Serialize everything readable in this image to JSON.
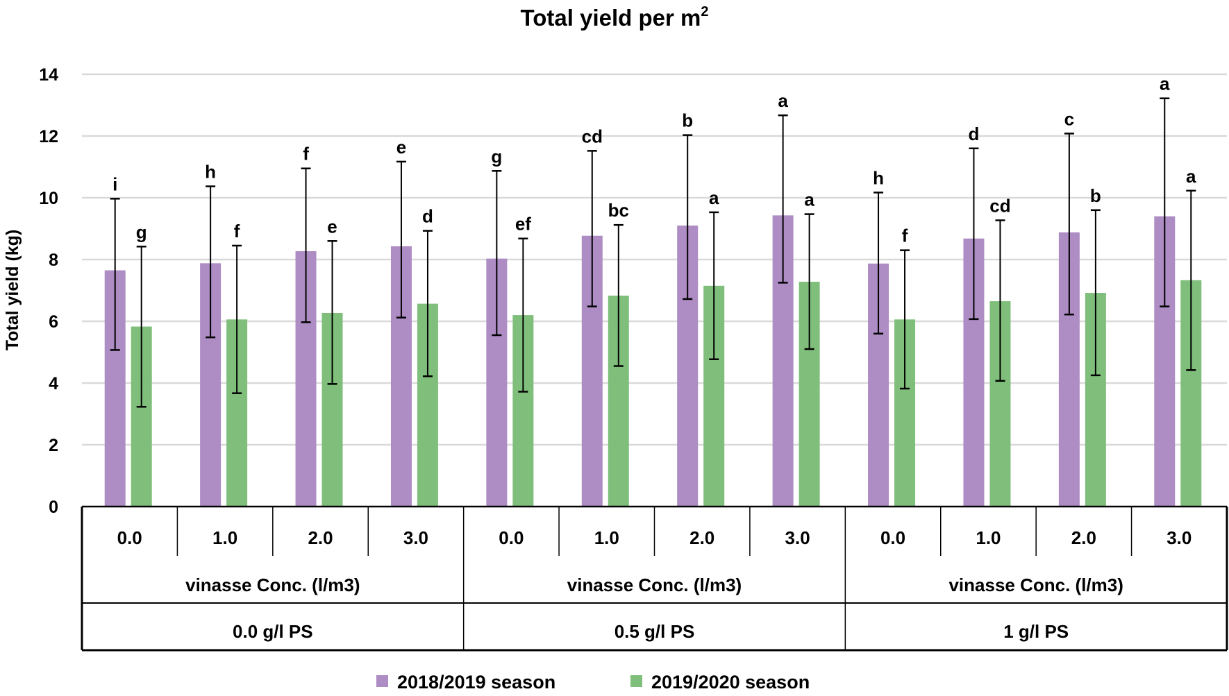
{
  "chart_data": {
    "type": "bar",
    "title": "Total yield per m",
    "title_superscript": "2",
    "ylabel": "Total yield  (kg)",
    "xlabel": "vinasse Conc. (l/m3)",
    "ylim": [
      0,
      14
    ],
    "yticks": [
      0,
      2,
      4,
      6,
      8,
      10,
      12,
      14
    ],
    "grid": true,
    "legend_position": "bottom",
    "groups": [
      {
        "label": "0.0 g/l PS",
        "sublabel": "vinasse Conc. (l/m3)",
        "categories": [
          "0.0",
          "1.0",
          "2.0",
          "3.0"
        ]
      },
      {
        "label": "0.5  g/l PS",
        "sublabel": "vinasse Conc. (l/m3)",
        "categories": [
          "0.0",
          "1.0",
          "2.0",
          "3.0"
        ]
      },
      {
        "label": "1  g/l PS",
        "sublabel": "vinasse Conc. (l/m3)",
        "categories": [
          "0.0",
          "1.0",
          "2.0",
          "3.0"
        ]
      }
    ],
    "series": [
      {
        "name": "2018/2019 season",
        "color": "#ae8cc4",
        "values": [
          7.65,
          7.88,
          8.27,
          8.43,
          8.03,
          8.77,
          9.1,
          9.43,
          7.87,
          8.68,
          8.88,
          9.4
        ],
        "error_upper": [
          9.97,
          10.37,
          10.95,
          11.17,
          10.87,
          11.52,
          12.03,
          12.67,
          10.17,
          11.6,
          12.08,
          13.22
        ],
        "error_lower": [
          5.07,
          5.48,
          5.97,
          6.12,
          5.55,
          6.48,
          6.72,
          7.25,
          5.6,
          6.07,
          6.22,
          6.48
        ],
        "letters": [
          "i",
          "h",
          "f",
          "e",
          "g",
          "cd",
          "b",
          "a",
          "h",
          "d",
          "c",
          "a"
        ]
      },
      {
        "name": "2019/2020 season",
        "color": "#7fbf7b",
        "values": [
          5.83,
          6.06,
          6.27,
          6.57,
          6.2,
          6.83,
          7.15,
          7.28,
          6.06,
          6.65,
          6.92,
          7.33
        ],
        "error_upper": [
          8.42,
          8.45,
          8.6,
          8.93,
          8.68,
          9.12,
          9.53,
          9.47,
          8.3,
          9.27,
          9.6,
          10.23
        ],
        "error_lower": [
          3.23,
          3.67,
          3.97,
          4.22,
          3.72,
          4.55,
          4.77,
          5.1,
          3.82,
          4.07,
          4.25,
          4.42
        ],
        "letters": [
          "g",
          "f",
          "e",
          "d",
          "ef",
          "bc",
          "a",
          "a",
          "f",
          "cd",
          "b",
          "a"
        ]
      }
    ]
  }
}
